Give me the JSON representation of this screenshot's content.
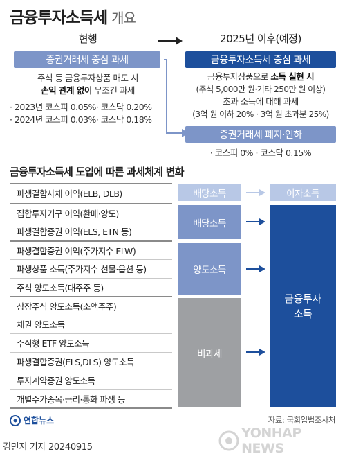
{
  "header": {
    "title_bold": "금융투자소득세",
    "title_light": "개요"
  },
  "current": {
    "heading": "현행",
    "box": "증권거래세 중심 과세",
    "desc_line1": "주식 등 금융투자상품 매도 시",
    "desc_line2_bold": "손익 관계 없이",
    "desc_line2_rest": " 무조건 과세",
    "bullet1": "· 2023년 코스피 0.05%· 코스닥 0.20%",
    "bullet2": "· 2024년 코스피 0.03%· 코스닥 0.18%"
  },
  "future": {
    "heading": "2025년 이후(예정)",
    "box": "금융투자소득세 중심 과세",
    "line1_pre": "금융투자상품으로 ",
    "line1_bold": "소득 실현 시",
    "line2": "(주식 5,000만 원·기타 250만 원 이상)",
    "line3": "초과 소득에 대해 과세",
    "line4": "(3억 원 이하 20% · 3억 원 초과분 25%)",
    "box2": "증권거래세 폐지·인하",
    "bullet": "· 코스피 0% · 코스닥 0.15%"
  },
  "section": {
    "title": "금융투자소득세 도입에 따른 과세체계 변화",
    "rows": [
      "파생결합사채 이익(ELB, DLB)",
      "집합투자기구 이익(환매·양도)",
      "파생결합증권 이익(ELS, ETN 등)",
      "파생결합증권 이익(주가지수 ELW)",
      "파생상품 소득(주가지수 선물·옵션 등)",
      "주식 양도소득(대주주 등)",
      "상장주식 양도소득(소액주주)",
      "채권 양도소득",
      "주식형 ETF 양도소득",
      "파생결합증권(ELS,DLS) 양도소득",
      "투자계약증권 양도소득",
      "개별주가종목·금리·통화 파생 등"
    ],
    "cat_dividend_1": "배당소득",
    "cat_interest": "이자소득",
    "cat_dividend_2": "배당소득",
    "cat_transfer": "양도소득",
    "cat_nontax": "비과세",
    "result_line1": "금융투자",
    "result_line2": "소득"
  },
  "footer": {
    "source": "자료: 국회입법조사처",
    "logo": "연합뉴스",
    "reporter": "김민지 기자  20240915",
    "watermark": "YONHAP NEWS"
  },
  "colors": {
    "dark": "#1d4f9c",
    "light": "#7d95c8",
    "pale": "#b8c8e6",
    "grey": "#9ea0a3"
  }
}
